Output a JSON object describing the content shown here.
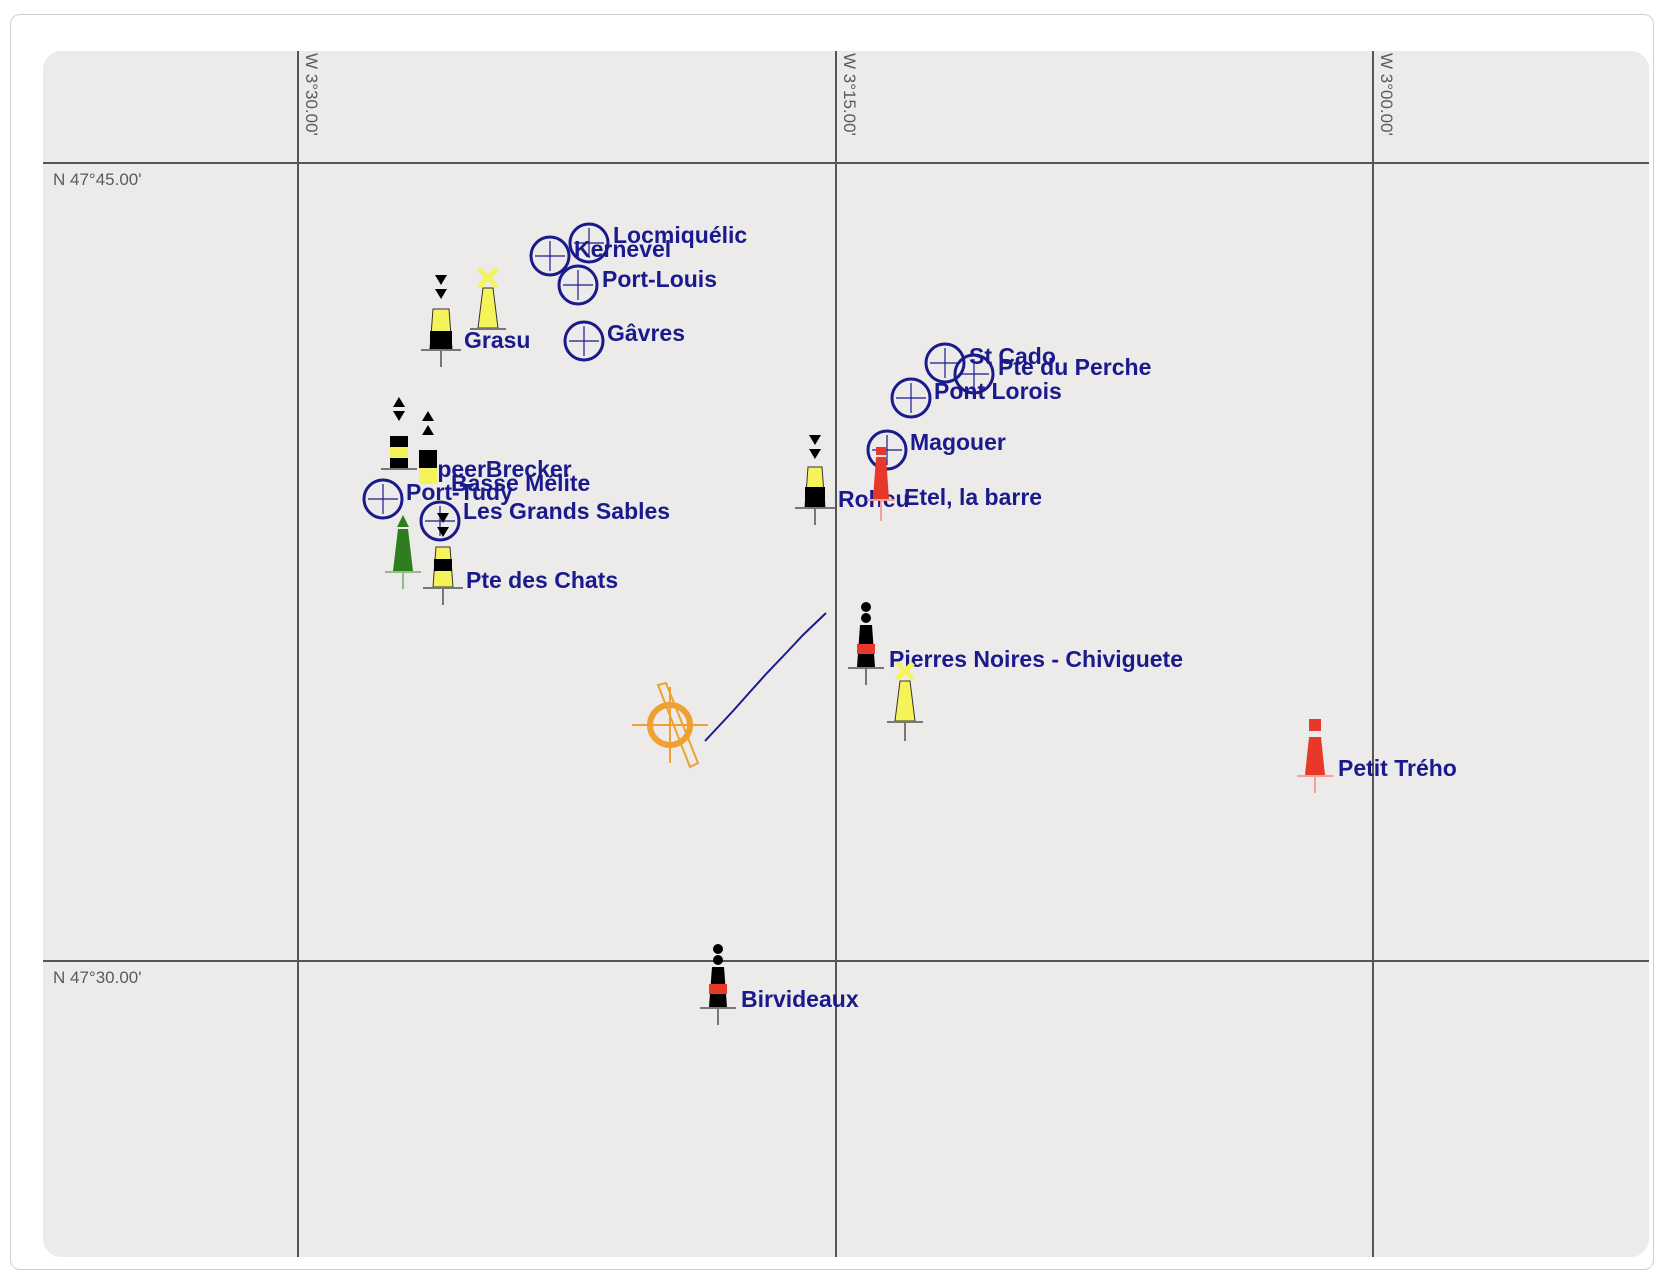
{
  "grid": {
    "lon_labels": [
      "W 3°30.00'",
      "W 3°15.00'",
      "W 3°00.00'"
    ],
    "lat_labels": [
      "N 47°45.00'",
      "N 47°30.00'"
    ]
  },
  "ports": [
    "Locmiquélic",
    "Kernevel",
    "Port-Louis",
    "Gâvres",
    "St Cado",
    "Pte du Perche",
    "Pont Lorois",
    "Magouer",
    "Port-Tudy",
    "Les Grands Sables"
  ],
  "buoys": [
    "Grasu",
    "SpeerBrecker",
    "Basse Mélite",
    "Pte des Chats",
    "Roheu",
    "Etel, la barre",
    "Pierres Noires - Chiviguete",
    "Petit Trého",
    "Birvideaux"
  ],
  "colors": {
    "grid": "#555555",
    "label": "#1a1a8c",
    "port_ring": "#1a1a8c",
    "yellow": "#f5f35a",
    "black": "#000000",
    "red": "#e8382a",
    "green": "#2e7d1e",
    "vessel": "#f0a030",
    "track": "#1a1a8c"
  },
  "icons": {
    "port": "harbour-circle-icon",
    "cardinal": "cardinal-buoy-icon",
    "danger": "isolated-danger-buoy-icon",
    "special": "special-mark-icon",
    "lateral_red": "port-lateral-buoy-icon",
    "lateral_green": "starboard-lateral-buoy-icon",
    "vessel": "vessel-position-icon"
  }
}
